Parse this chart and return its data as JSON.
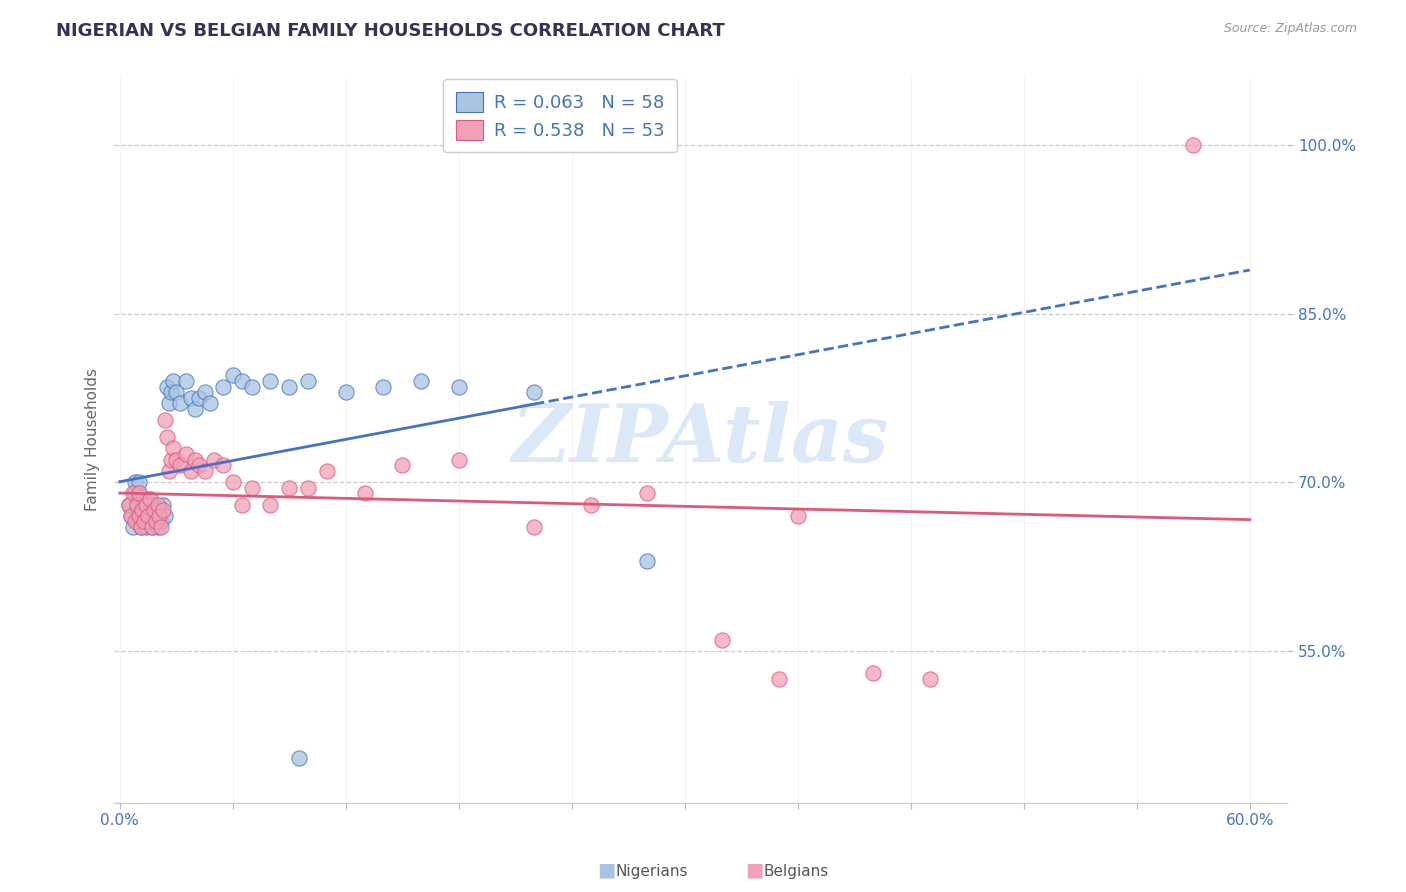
{
  "title": "NIGERIAN VS BELGIAN FAMILY HOUSEHOLDS CORRELATION CHART",
  "source": "Source: ZipAtlas.com",
  "ylabel": "Family Households",
  "ytick_labels": [
    "55.0%",
    "70.0%",
    "85.0%",
    "100.0%"
  ],
  "ytick_values": [
    0.55,
    0.7,
    0.85,
    1.0
  ],
  "xlim": [
    -0.003,
    0.62
  ],
  "ylim": [
    0.415,
    1.06
  ],
  "r_nigerian": 0.063,
  "n_nigerian": 58,
  "r_belgian": 0.538,
  "n_belgian": 53,
  "nigerian_color": "#a8c4e0",
  "belgian_color": "#f0a0b8",
  "trend_nigerian_color": "#4472c4",
  "trend_belgian_color": "#e05878",
  "watermark": "ZIPAtlas",
  "watermark_color": "#c8ddf5",
  "legend_text_color": "#4472c4",
  "nigerian_scatter": [
    [
      0.005,
      0.68
    ],
    [
      0.006,
      0.67
    ],
    [
      0.007,
      0.66
    ],
    [
      0.008,
      0.69
    ],
    [
      0.008,
      0.7
    ],
    [
      0.009,
      0.665
    ],
    [
      0.009,
      0.68
    ],
    [
      0.01,
      0.67
    ],
    [
      0.01,
      0.69
    ],
    [
      0.01,
      0.7
    ],
    [
      0.011,
      0.66
    ],
    [
      0.011,
      0.675
    ],
    [
      0.012,
      0.665
    ],
    [
      0.012,
      0.68
    ],
    [
      0.013,
      0.67
    ],
    [
      0.013,
      0.685
    ],
    [
      0.014,
      0.66
    ],
    [
      0.014,
      0.675
    ],
    [
      0.015,
      0.665
    ],
    [
      0.015,
      0.68
    ],
    [
      0.016,
      0.67
    ],
    [
      0.016,
      0.685
    ],
    [
      0.017,
      0.66
    ],
    [
      0.017,
      0.675
    ],
    [
      0.018,
      0.665
    ],
    [
      0.018,
      0.68
    ],
    [
      0.019,
      0.67
    ],
    [
      0.02,
      0.66
    ],
    [
      0.021,
      0.675
    ],
    [
      0.022,
      0.665
    ],
    [
      0.023,
      0.68
    ],
    [
      0.024,
      0.67
    ],
    [
      0.025,
      0.785
    ],
    [
      0.026,
      0.77
    ],
    [
      0.027,
      0.78
    ],
    [
      0.028,
      0.79
    ],
    [
      0.03,
      0.78
    ],
    [
      0.032,
      0.77
    ],
    [
      0.035,
      0.79
    ],
    [
      0.038,
      0.775
    ],
    [
      0.04,
      0.765
    ],
    [
      0.042,
      0.775
    ],
    [
      0.045,
      0.78
    ],
    [
      0.048,
      0.77
    ],
    [
      0.055,
      0.785
    ],
    [
      0.06,
      0.795
    ],
    [
      0.065,
      0.79
    ],
    [
      0.07,
      0.785
    ],
    [
      0.08,
      0.79
    ],
    [
      0.09,
      0.785
    ],
    [
      0.1,
      0.79
    ],
    [
      0.12,
      0.78
    ],
    [
      0.14,
      0.785
    ],
    [
      0.16,
      0.79
    ],
    [
      0.18,
      0.785
    ],
    [
      0.22,
      0.78
    ],
    [
      0.095,
      0.455
    ],
    [
      0.28,
      0.63
    ]
  ],
  "belgian_scatter": [
    [
      0.005,
      0.68
    ],
    [
      0.006,
      0.67
    ],
    [
      0.007,
      0.69
    ],
    [
      0.008,
      0.665
    ],
    [
      0.009,
      0.68
    ],
    [
      0.01,
      0.67
    ],
    [
      0.01,
      0.69
    ],
    [
      0.011,
      0.66
    ],
    [
      0.012,
      0.675
    ],
    [
      0.013,
      0.665
    ],
    [
      0.014,
      0.68
    ],
    [
      0.015,
      0.67
    ],
    [
      0.016,
      0.685
    ],
    [
      0.017,
      0.66
    ],
    [
      0.018,
      0.675
    ],
    [
      0.019,
      0.665
    ],
    [
      0.02,
      0.68
    ],
    [
      0.021,
      0.67
    ],
    [
      0.022,
      0.66
    ],
    [
      0.023,
      0.675
    ],
    [
      0.024,
      0.755
    ],
    [
      0.025,
      0.74
    ],
    [
      0.026,
      0.71
    ],
    [
      0.027,
      0.72
    ],
    [
      0.028,
      0.73
    ],
    [
      0.03,
      0.72
    ],
    [
      0.032,
      0.715
    ],
    [
      0.035,
      0.725
    ],
    [
      0.038,
      0.71
    ],
    [
      0.04,
      0.72
    ],
    [
      0.042,
      0.715
    ],
    [
      0.045,
      0.71
    ],
    [
      0.05,
      0.72
    ],
    [
      0.055,
      0.715
    ],
    [
      0.06,
      0.7
    ],
    [
      0.065,
      0.68
    ],
    [
      0.07,
      0.695
    ],
    [
      0.08,
      0.68
    ],
    [
      0.09,
      0.695
    ],
    [
      0.1,
      0.695
    ],
    [
      0.11,
      0.71
    ],
    [
      0.13,
      0.69
    ],
    [
      0.15,
      0.715
    ],
    [
      0.18,
      0.72
    ],
    [
      0.22,
      0.66
    ],
    [
      0.25,
      0.68
    ],
    [
      0.28,
      0.69
    ],
    [
      0.32,
      0.56
    ],
    [
      0.35,
      0.525
    ],
    [
      0.36,
      0.67
    ],
    [
      0.4,
      0.53
    ],
    [
      0.43,
      0.525
    ],
    [
      0.57,
      1.0
    ]
  ]
}
